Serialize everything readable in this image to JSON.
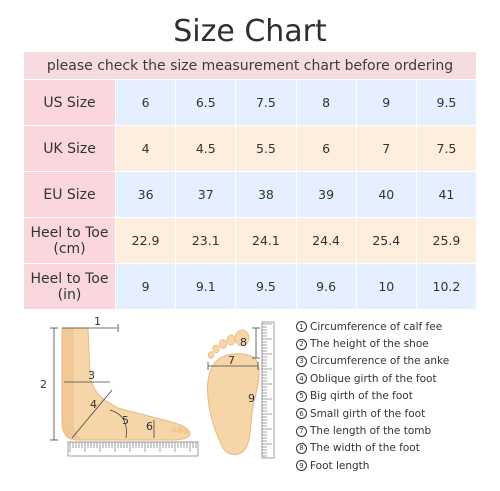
{
  "title": "Size Chart",
  "subtitle": "please check the size measurement chart before ordering",
  "table": {
    "rows": [
      {
        "label": "US Size",
        "values": [
          "6",
          "6.5",
          "7.5",
          "8",
          "9",
          "9.5"
        ],
        "style": "blue"
      },
      {
        "label": "UK Size",
        "values": [
          "4",
          "4.5",
          "5.5",
          "6",
          "7",
          "7.5"
        ],
        "style": "cream"
      },
      {
        "label": "EU Size",
        "values": [
          "36",
          "37",
          "38",
          "39",
          "40",
          "41"
        ],
        "style": "blue"
      },
      {
        "label": "Heel to Toe (cm)",
        "label_lines": [
          "Heel to Toe",
          "(cm)"
        ],
        "values": [
          "22.9",
          "23.1",
          "24.1",
          "24.4",
          "25.4",
          "25.9"
        ],
        "style": "cream"
      },
      {
        "label": "Heel to Toe (in)",
        "label_lines": [
          "Heel to Toe",
          "(in)"
        ],
        "values": [
          "9",
          "9.1",
          "9.5",
          "9.6",
          "10",
          "10.2"
        ],
        "style": "blue"
      }
    ]
  },
  "diagram_labels": {
    "side": [
      "1",
      "2",
      "3",
      "4",
      "5",
      "6"
    ],
    "bottom": [
      "7",
      "8",
      "9"
    ]
  },
  "legend": [
    {
      "num": "1",
      "text": "Circumference of calf fee"
    },
    {
      "num": "2",
      "text": "The height of the shoe"
    },
    {
      "num": "3",
      "text": "Circumference of the anke"
    },
    {
      "num": "4",
      "text": "Oblique girth of the foot"
    },
    {
      "num": "5",
      "text": "Big qirth of the foot"
    },
    {
      "num": "6",
      "text": "Small girth of the foot"
    },
    {
      "num": "7",
      "text": "The length of the tomb"
    },
    {
      "num": "8",
      "text": "The width of the foot"
    },
    {
      "num": "9",
      "text": "Foot length"
    }
  ],
  "colors": {
    "pink": "#f9d7dc",
    "blue": "#e4efff",
    "cream": "#fdeedd",
    "skin": "#f6d6a8",
    "skin_shade": "#eec08a"
  }
}
